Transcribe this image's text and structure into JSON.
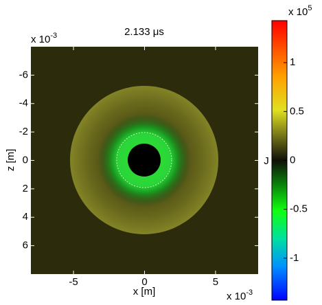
{
  "chart_data": {
    "type": "heatmap",
    "title": "2.133 μs",
    "xlabel": "x [m]",
    "ylabel": "z [m]",
    "xlim": [
      -8,
      8
    ],
    "ylim": [
      -8,
      8
    ],
    "y_reversed": true,
    "xticks": [
      -5,
      0,
      5
    ],
    "yticks": [
      -6,
      -4,
      -2,
      0,
      2,
      4,
      6
    ],
    "x_multiplier": {
      "base": "x 10",
      "exponent": "-3"
    },
    "colorbar": {
      "label": "J",
      "lim": [
        -1.43,
        1.43
      ],
      "ticks": [
        -1,
        -0.5,
        0,
        0.5,
        1
      ],
      "multiplier": {
        "base": "x 10",
        "exponent": "5"
      }
    }
  }
}
